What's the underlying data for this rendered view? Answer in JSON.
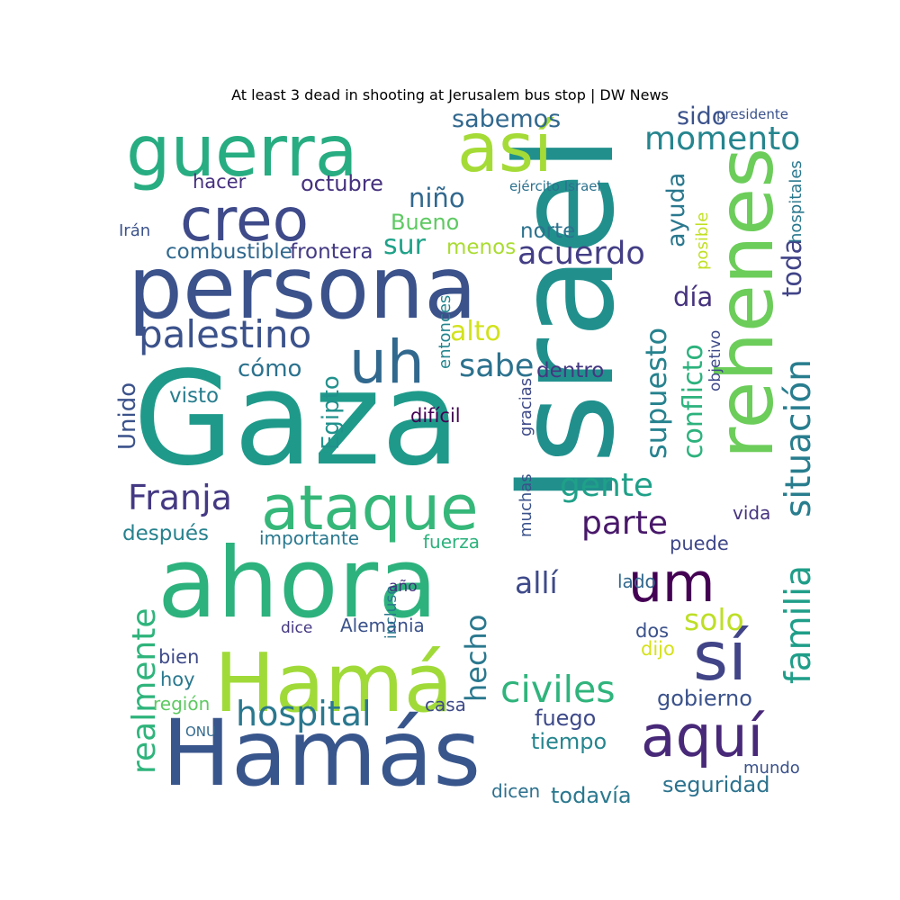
{
  "chart_data": {
    "type": "wordcloud",
    "title": "At least 3 dead in shooting at Jerusalem bus stop | DW News",
    "palette": "viridis",
    "words": [
      {
        "text": "Israel",
        "weight": 100,
        "color": "#21908d"
      },
      {
        "text": "Gaza",
        "weight": 96,
        "color": "#1f9a8a"
      },
      {
        "text": "ahora",
        "weight": 72,
        "color": "#2db27d"
      },
      {
        "text": "Hamás",
        "weight": 68,
        "color": "#39568c"
      },
      {
        "text": "persona",
        "weight": 64,
        "color": "#3b528b"
      },
      {
        "text": "Hamá",
        "weight": 60,
        "color": "#a0da39"
      },
      {
        "text": "rehenes",
        "weight": 57,
        "color": "#6ccd5a"
      },
      {
        "text": "guerra",
        "weight": 52,
        "color": "#27ad81"
      },
      {
        "text": "así",
        "weight": 50,
        "color": "#a5db36"
      },
      {
        "text": "sí",
        "weight": 50,
        "color": "#414487"
      },
      {
        "text": "ataque",
        "weight": 46,
        "color": "#35b779"
      },
      {
        "text": "creo",
        "weight": 44,
        "color": "#3e4a89"
      },
      {
        "text": "uh",
        "weight": 44,
        "color": "#31688e"
      },
      {
        "text": "aquí",
        "weight": 42,
        "color": "#482878"
      },
      {
        "text": "um",
        "weight": 40,
        "color": "#440154"
      },
      {
        "text": "palestino",
        "weight": 28,
        "color": "#3b528b"
      },
      {
        "text": "civiles",
        "weight": 27,
        "color": "#2fb47c"
      },
      {
        "text": "familia",
        "weight": 26,
        "color": "#1f9e89"
      },
      {
        "text": "situación",
        "weight": 26,
        "color": "#287d8e"
      },
      {
        "text": "Franja",
        "weight": 25,
        "color": "#443983"
      },
      {
        "text": "hospital",
        "weight": 25,
        "color": "#2a788e"
      },
      {
        "text": "parte",
        "weight": 24,
        "color": "#48186a"
      },
      {
        "text": "gente",
        "weight": 24,
        "color": "#1fa088"
      },
      {
        "text": "realmente",
        "weight": 24,
        "color": "#2fb47c"
      },
      {
        "text": "momento",
        "weight": 24,
        "color": "#25858e"
      },
      {
        "text": "acuerdo",
        "weight": 23,
        "color": "#433e85"
      },
      {
        "text": "sabe",
        "weight": 23,
        "color": "#2c728e"
      },
      {
        "text": "solo",
        "weight": 22,
        "color": "#bddf26"
      },
      {
        "text": "allí",
        "weight": 22,
        "color": "#3e4a89"
      },
      {
        "text": "hecho",
        "weight": 21,
        "color": "#2a788e"
      },
      {
        "text": "supuesto",
        "weight": 21,
        "color": "#26828e"
      },
      {
        "text": "conflicto",
        "weight": 20,
        "color": "#2db27d"
      },
      {
        "text": "sur",
        "weight": 20,
        "color": "#1fa188"
      },
      {
        "text": "alto",
        "weight": 20,
        "color": "#d2e21b"
      },
      {
        "text": "niño",
        "weight": 19,
        "color": "#31688e"
      },
      {
        "text": "día",
        "weight": 19,
        "color": "#46337e"
      },
      {
        "text": "toda",
        "weight": 19,
        "color": "#414487"
      },
      {
        "text": "ayuda",
        "weight": 18,
        "color": "#2a788e"
      },
      {
        "text": "sido",
        "weight": 18,
        "color": "#3b528b"
      },
      {
        "text": "sabemos",
        "weight": 18,
        "color": "#31688e"
      },
      {
        "text": "cómo",
        "weight": 17,
        "color": "#2c728e"
      },
      {
        "text": "Egipto",
        "weight": 17,
        "color": "#21918c"
      },
      {
        "text": "Unido",
        "weight": 17,
        "color": "#3b528b"
      },
      {
        "text": "octubre",
        "weight": 16,
        "color": "#46327e"
      },
      {
        "text": "Bueno",
        "weight": 16,
        "color": "#5ec962"
      },
      {
        "text": "tiempo",
        "weight": 16,
        "color": "#25858e"
      },
      {
        "text": "fuego",
        "weight": 16,
        "color": "#3e4a89"
      },
      {
        "text": "gobierno",
        "weight": 16,
        "color": "#3b528b"
      },
      {
        "text": "todavía",
        "weight": 16,
        "color": "#2a788e"
      },
      {
        "text": "seguridad",
        "weight": 16,
        "color": "#2c728e"
      },
      {
        "text": "dentro",
        "weight": 15,
        "color": "#453781"
      },
      {
        "text": "visto",
        "weight": 15,
        "color": "#287d8e"
      },
      {
        "text": "después",
        "weight": 15,
        "color": "#26828e"
      },
      {
        "text": "norte",
        "weight": 15,
        "color": "#2c728e"
      },
      {
        "text": "menos",
        "weight": 15,
        "color": "#aadc32"
      },
      {
        "text": "combustible",
        "weight": 15,
        "color": "#31688e"
      },
      {
        "text": "frontera",
        "weight": 15,
        "color": "#443a83"
      },
      {
        "text": "hacer",
        "weight": 14,
        "color": "#46307e"
      },
      {
        "text": "difícil",
        "weight": 14,
        "color": "#440154"
      },
      {
        "text": "puede",
        "weight": 14,
        "color": "#3f4889"
      },
      {
        "text": "dijo",
        "weight": 14,
        "color": "#d5e21a"
      },
      {
        "text": "dos",
        "weight": 14,
        "color": "#3b528b"
      },
      {
        "text": "hoy",
        "weight": 14,
        "color": "#2a788e"
      },
      {
        "text": "bien",
        "weight": 14,
        "color": "#3e4a89"
      },
      {
        "text": "región",
        "weight": 13,
        "color": "#5ec962"
      },
      {
        "text": "dicen",
        "weight": 13,
        "color": "#2d708e"
      },
      {
        "text": "Alemania",
        "weight": 13,
        "color": "#3b528b"
      },
      {
        "text": "importante",
        "weight": 13,
        "color": "#2a788e"
      },
      {
        "text": "fuerza",
        "weight": 13,
        "color": "#2db27d"
      },
      {
        "text": "lado",
        "weight": 13,
        "color": "#31688e"
      },
      {
        "text": "vida",
        "weight": 13,
        "color": "#46337e"
      },
      {
        "text": "casa",
        "weight": 13,
        "color": "#3e4a89"
      },
      {
        "text": "mundo",
        "weight": 12,
        "color": "#3b528b"
      },
      {
        "text": "entonces",
        "weight": 12,
        "color": "#25858e"
      },
      {
        "text": "gracias",
        "weight": 12,
        "color": "#3e4a89"
      },
      {
        "text": "muchas",
        "weight": 12,
        "color": "#3b528b"
      },
      {
        "text": "Irán",
        "weight": 12,
        "color": "#3b528b"
      },
      {
        "text": "hospitales",
        "weight": 12,
        "color": "#2a788e"
      },
      {
        "text": "posible",
        "weight": 12,
        "color": "#c2df23"
      },
      {
        "text": "objetivo",
        "weight": 11,
        "color": "#3e4a89"
      },
      {
        "text": "incluso",
        "weight": 11,
        "color": "#2a788e"
      },
      {
        "text": "año",
        "weight": 11,
        "color": "#46327e"
      },
      {
        "text": "dice",
        "weight": 11,
        "color": "#453781"
      },
      {
        "text": "ejército Israel",
        "weight": 10,
        "color": "#2c728e"
      },
      {
        "text": "presidente",
        "weight": 10,
        "color": "#3b528b"
      },
      {
        "text": "ONU",
        "weight": 10,
        "color": "#31688e"
      }
    ]
  }
}
